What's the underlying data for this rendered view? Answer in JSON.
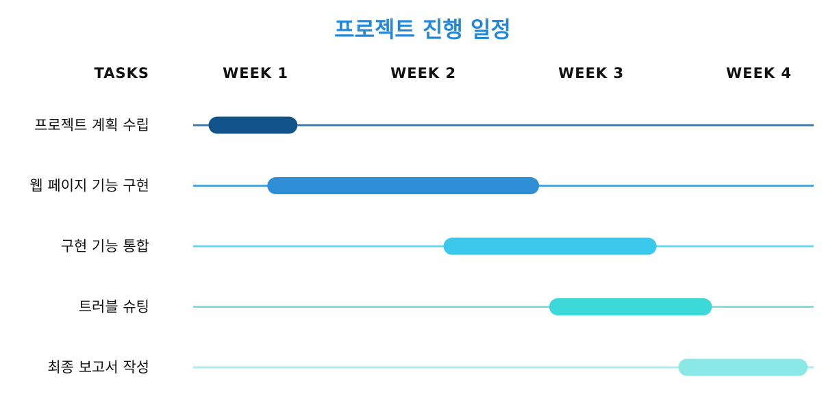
{
  "chart_data": {
    "type": "gantt",
    "title": "프로젝트 진행 일정",
    "task_column_header": "TASKS",
    "columns": [
      "WEEK 1",
      "WEEK 2",
      "WEEK 3",
      "WEEK 4"
    ],
    "x_range": [
      0,
      4
    ],
    "tasks": [
      {
        "label": "프로젝트 계획 수립",
        "start": 0.1,
        "end": 0.63,
        "color": "#12538A"
      },
      {
        "label": "웹 페이지 기능 구현",
        "start": 0.45,
        "end": 2.07,
        "color": "#2E8FD6"
      },
      {
        "label": "구현 기능 통합",
        "start": 1.5,
        "end": 2.77,
        "color": "#3AC8ED"
      },
      {
        "label": "트러블 슈팅",
        "start": 2.13,
        "end": 3.1,
        "color": "#3DD8D8"
      },
      {
        "label": "최종 보고서 작성",
        "start": 2.9,
        "end": 3.67,
        "color": "#8AE8E6"
      }
    ],
    "track_colors": [
      "#3D78A8",
      "#4FA3D8",
      "#6FD3EC",
      "#7FE0E2",
      "#A8EDEB"
    ],
    "title_color": "#2588D6"
  }
}
